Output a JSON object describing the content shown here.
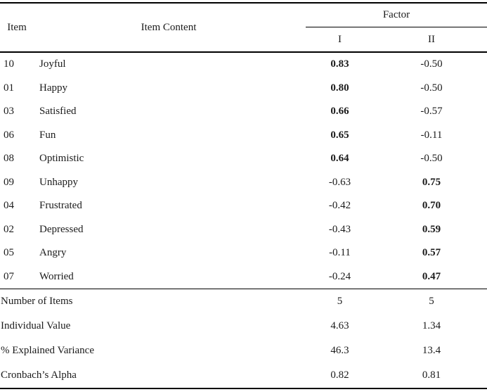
{
  "table": {
    "header": {
      "item": "Item",
      "item_content": "Item Content",
      "factor": "Factor",
      "factor_1": "I",
      "factor_2": "II"
    },
    "rows": [
      {
        "item": "10",
        "content": "Joyful",
        "f1": "0.83",
        "f2": "-0.50",
        "bold": "I"
      },
      {
        "item": "01",
        "content": "Happy",
        "f1": "0.80",
        "f2": "-0.50",
        "bold": "I"
      },
      {
        "item": "03",
        "content": "Satisfied",
        "f1": "0.66",
        "f2": "-0.57",
        "bold": "I"
      },
      {
        "item": "06",
        "content": "Fun",
        "f1": "0.65",
        "f2": "-0.11",
        "bold": "I"
      },
      {
        "item": "08",
        "content": "Optimistic",
        "f1": "0.64",
        "f2": "-0.50",
        "bold": "I"
      },
      {
        "item": "09",
        "content": "Unhappy",
        "f1": "-0.63",
        "f2": "0.75",
        "bold": "II"
      },
      {
        "item": "04",
        "content": "Frustrated",
        "f1": "-0.42",
        "f2": "0.70",
        "bold": "II"
      },
      {
        "item": "02",
        "content": "Depressed",
        "f1": "-0.43",
        "f2": "0.59",
        "bold": "II"
      },
      {
        "item": "05",
        "content": "Angry",
        "f1": "-0.11",
        "f2": "0.57",
        "bold": "II"
      },
      {
        "item": "07",
        "content": "Worried",
        "f1": "-0.24",
        "f2": "0.47",
        "bold": "II"
      }
    ],
    "summary": [
      {
        "label": "Number of Items",
        "f1": "5",
        "f2": "5"
      },
      {
        "label": "Individual Value",
        "f1": "4.63",
        "f2": "1.34"
      },
      {
        "label": "% Explained Variance",
        "f1": "46.3",
        "f2": "13.4"
      },
      {
        "label": "Cronbach’s Alpha",
        "f1": "0.82",
        "f2": "0.81"
      }
    ]
  },
  "colors": {
    "text": "#1b1b1b",
    "border": "#000000",
    "background": "#ffffff"
  }
}
